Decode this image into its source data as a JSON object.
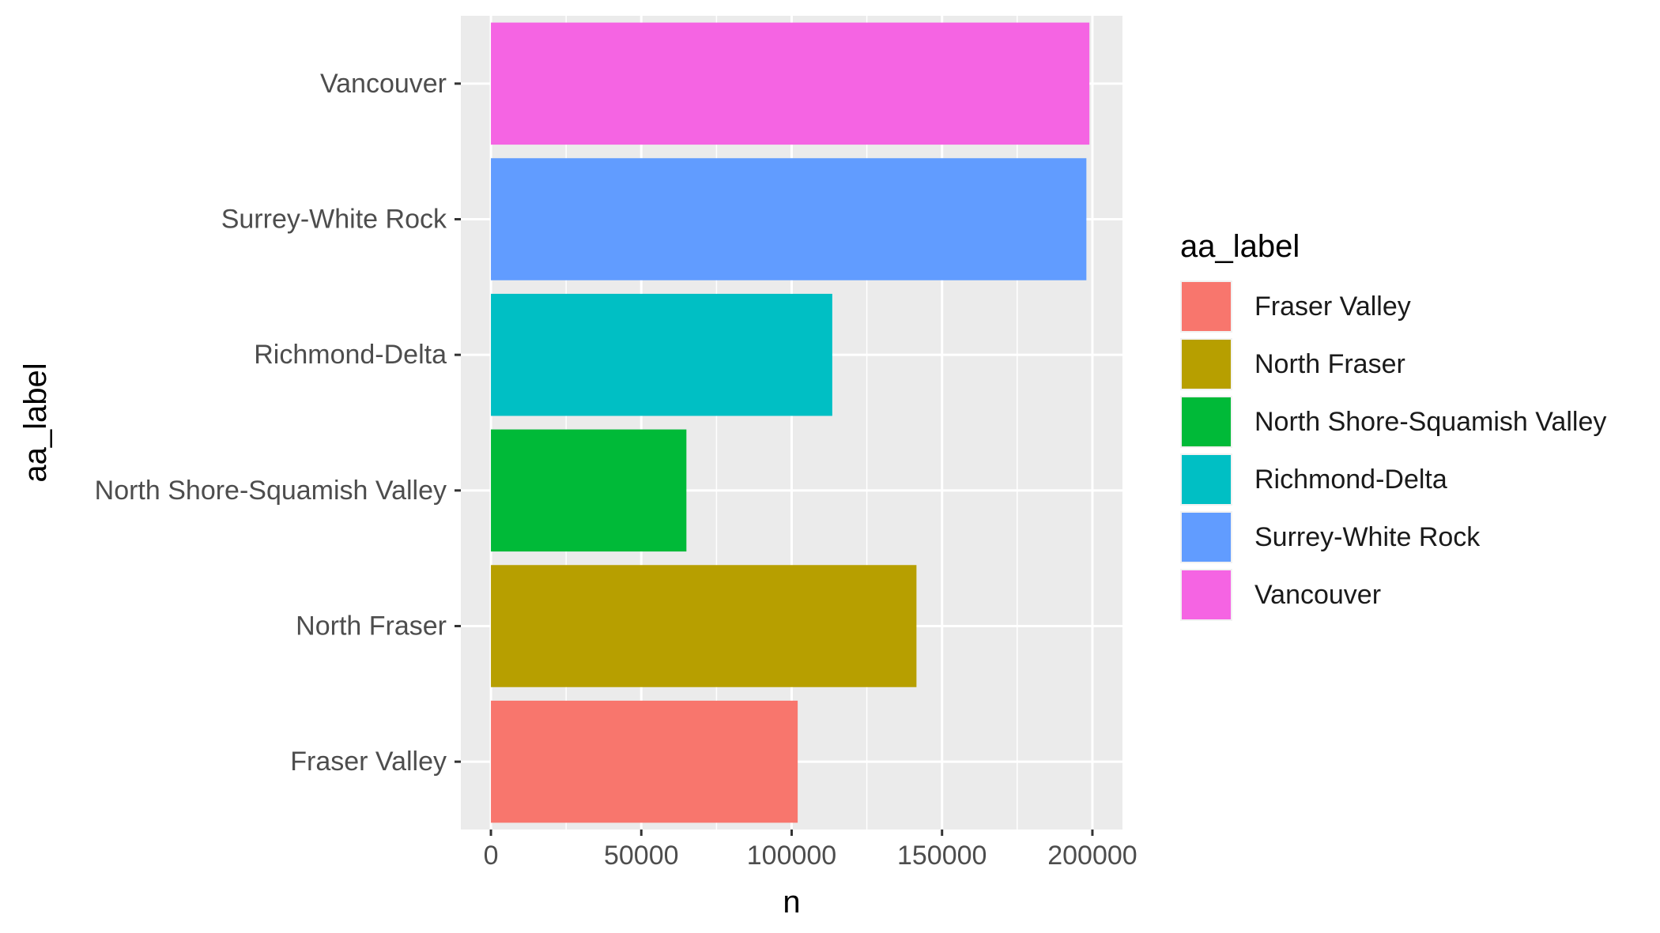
{
  "chart_data": {
    "type": "bar",
    "orientation": "horizontal",
    "categories": [
      "Fraser Valley",
      "North Fraser",
      "North Shore-Squamish Valley",
      "Richmond-Delta",
      "Surrey-White Rock",
      "Vancouver"
    ],
    "values": [
      102000,
      141500,
      65000,
      113500,
      198000,
      199000
    ],
    "colors": [
      "#F8766D",
      "#B79F00",
      "#00BA38",
      "#00BFC4",
      "#619CFF",
      "#F564E3"
    ],
    "xlabel": "n",
    "ylabel": "aa_label",
    "xticks": [
      0,
      50000,
      100000,
      150000,
      200000
    ],
    "xtick_labels": [
      "0",
      "50000",
      "100000",
      "150000",
      "200000"
    ],
    "xlim": [
      -10000,
      210000
    ],
    "grid": true,
    "panel_background": "#EBEBEB",
    "legend": {
      "title": "aa_label",
      "position": "right",
      "items": [
        "Fraser Valley",
        "North Fraser",
        "North Shore-Squamish Valley",
        "Richmond-Delta",
        "Surrey-White Rock",
        "Vancouver"
      ]
    }
  }
}
